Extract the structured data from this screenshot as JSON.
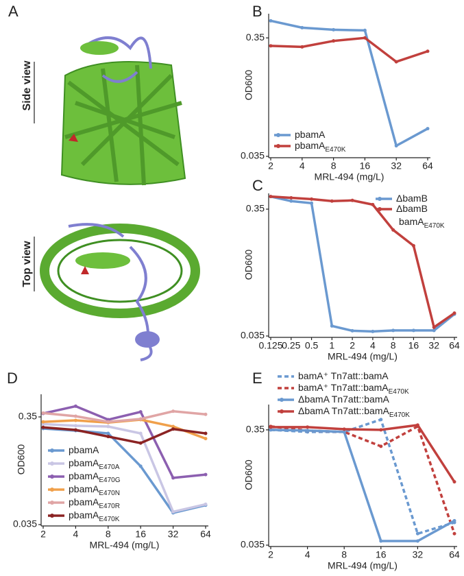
{
  "panel_a": {
    "label": "A",
    "side_view": "Side view",
    "top_view": "Top view"
  },
  "chart_data": [
    {
      "type": "line",
      "panel": "B",
      "xlabel": "MRL-494 (mg/L)",
      "ylabel": "OD600",
      "xscale": "log",
      "yscale": "log",
      "x": [
        2,
        4,
        8,
        16,
        32,
        64
      ],
      "xlim": [
        2,
        64
      ],
      "xticks": [
        2,
        4,
        8,
        16,
        32,
        64
      ],
      "ylim": [
        0.035,
        0.56
      ],
      "yticks": [
        0.035,
        0.35
      ],
      "legend": "lower left",
      "series": [
        {
          "name": "pbamA",
          "color": "#6a99d0",
          "values": [
            0.488,
            0.427,
            0.41,
            0.405,
            0.043,
            0.06
          ]
        },
        {
          "name": "pbamA",
          "subscript": "E470K",
          "color": "#c1403d",
          "values": [
            0.3,
            0.294,
            0.33,
            0.35,
            0.22,
            0.27
          ]
        }
      ]
    },
    {
      "type": "line",
      "panel": "C",
      "xlabel": "MRL-494 (mg/L)",
      "ylabel": "OD600",
      "xscale": "log",
      "yscale": "log",
      "x": [
        0.125,
        0.25,
        0.5,
        1,
        2,
        4,
        8,
        16,
        32,
        64
      ],
      "xlim": [
        0.125,
        64
      ],
      "xticks": [
        0.125,
        0.25,
        0.5,
        1,
        2,
        4,
        8,
        16,
        32,
        64
      ],
      "ylim": [
        0.035,
        0.466
      ],
      "yticks": [
        0.035,
        0.35
      ],
      "legend": "upper right",
      "series": [
        {
          "name": "ΔbamB",
          "color": "#6a99d0",
          "values": [
            0.44,
            0.405,
            0.39,
            0.042,
            0.0385,
            0.038,
            0.0387,
            0.0387,
            0.0387,
            0.052
          ]
        },
        {
          "name": "ΔbamB",
          "name_line2": "bamA",
          "subscript": "E470K",
          "color": "#c1403d",
          "values": [
            0.44,
            0.43,
            0.42,
            0.405,
            0.41,
            0.38,
            0.24,
            0.18,
            0.041,
            0.053
          ]
        }
      ]
    },
    {
      "type": "line",
      "panel": "D",
      "xlabel": "MRL-494 (mg/L)",
      "ylabel": "OD600",
      "xscale": "log",
      "yscale": "log",
      "x": [
        2,
        4,
        8,
        16,
        32,
        64
      ],
      "xlim": [
        2,
        64
      ],
      "xticks": [
        2,
        4,
        8,
        16,
        32,
        64
      ],
      "ylim": [
        0.035,
        0.568
      ],
      "yticks": [
        0.035,
        0.35
      ],
      "legend": "lower left",
      "series": [
        {
          "name": "pbamA",
          "color": "#6a99d0",
          "values": [
            0.273,
            0.261,
            0.246,
            0.122,
            0.045,
            0.053
          ]
        },
        {
          "name": "pbamA",
          "subscript": "E470A",
          "color": "#c9c6e4",
          "values": [
            0.3,
            0.29,
            0.285,
            0.246,
            0.046,
            0.054
          ]
        },
        {
          "name": "pbamA",
          "subscript": "E470G",
          "color": "#8c5fb0",
          "values": [
            0.377,
            0.44,
            0.33,
            0.39,
            0.095,
            0.102
          ]
        },
        {
          "name": "pbamA",
          "subscript": "E470N",
          "color": "#f0a04b",
          "values": [
            0.315,
            0.325,
            0.31,
            0.33,
            0.285,
            0.22
          ]
        },
        {
          "name": "pbamA",
          "subscript": "E470R",
          "color": "#e0a5a5",
          "values": [
            0.38,
            0.355,
            0.315,
            0.335,
            0.395,
            0.37
          ]
        },
        {
          "name": "pbamA",
          "subscript": "E470K",
          "color": "#8b2323",
          "values": [
            0.28,
            0.265,
            0.23,
            0.2,
            0.27,
            0.246
          ]
        }
      ]
    },
    {
      "type": "line",
      "panel": "E",
      "xlabel": "MRL-494 (mg/L)",
      "ylabel": "OD600",
      "xscale": "log",
      "yscale": "log",
      "x": [
        2,
        4,
        8,
        16,
        32,
        64
      ],
      "xlim": [
        2,
        64
      ],
      "xticks": [
        2,
        4,
        8,
        16,
        32,
        64
      ],
      "ylim": [
        0.035,
        0.58
      ],
      "yticks": [
        0.035,
        0.35
      ],
      "legend": "top",
      "series": [
        {
          "name": "bamA⁺ Tn7att::bamA",
          "dashed": true,
          "color": "#6a99d0",
          "values": [
            0.35,
            0.336,
            0.336,
            0.43,
            0.044,
            0.055
          ]
        },
        {
          "name": "bamA⁺ Tn7att::bamA",
          "subscript": "E470K",
          "dashed": true,
          "color": "#c1403d",
          "values": [
            0.375,
            0.345,
            0.336,
            0.252,
            0.375,
            0.044
          ]
        },
        {
          "name": "ΔbamA Tn7att::bamA",
          "color": "#6a99d0",
          "values": [
            0.35,
            0.345,
            0.336,
            0.038,
            0.038,
            0.057
          ]
        },
        {
          "name": "ΔbamA Tn7att::bamA",
          "subscript": "E470K",
          "color": "#c1403d",
          "values": [
            0.37,
            0.37,
            0.355,
            0.35,
            0.385,
            0.124
          ]
        }
      ]
    }
  ]
}
